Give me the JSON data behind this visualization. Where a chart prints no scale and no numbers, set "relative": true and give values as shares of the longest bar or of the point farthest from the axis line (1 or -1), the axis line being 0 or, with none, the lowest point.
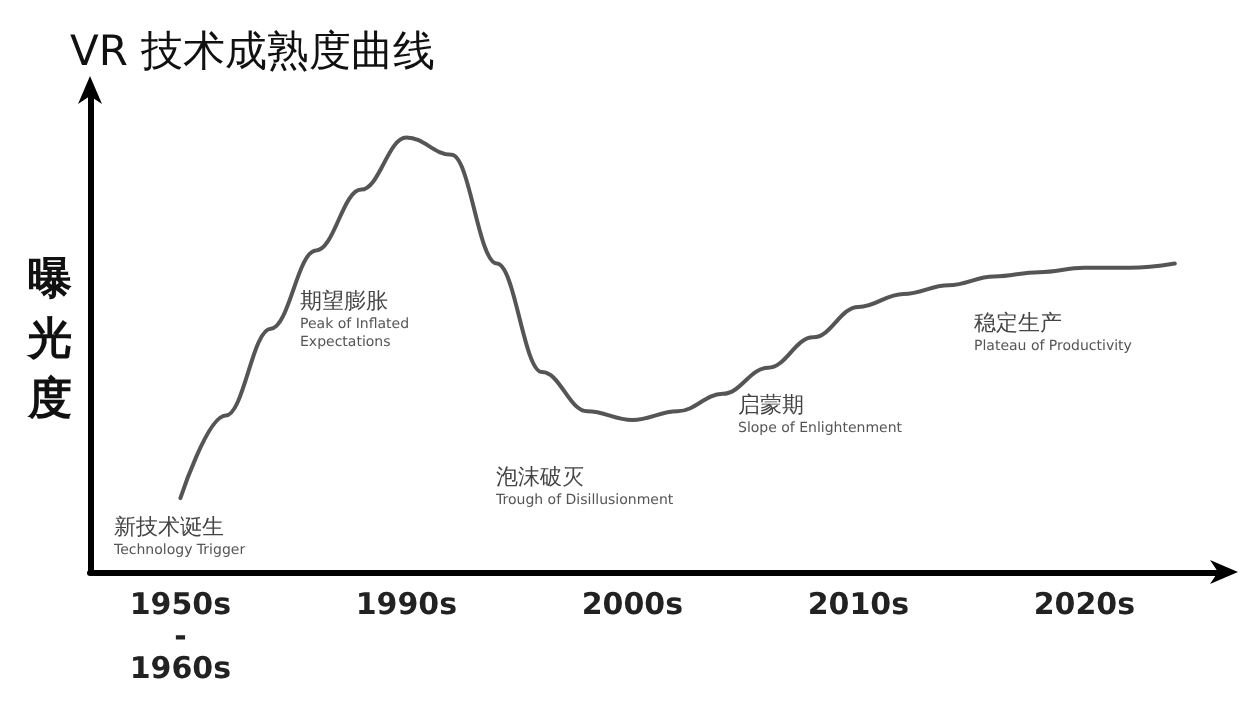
{
  "chart_data": {
    "type": "line",
    "title": "VR 技术成熟度曲线",
    "ylabel": "曝光度",
    "relative": true,
    "categories": [
      null,
      null,
      "1950s\n-\n1960s",
      null,
      null,
      null,
      null,
      "1990s",
      null,
      null,
      null,
      null,
      "2000s",
      null,
      null,
      null,
      null,
      "2010s",
      null,
      null,
      null,
      null,
      "2020s",
      null,
      null,
      null
    ],
    "series": [
      {
        "color": "#555555",
        "values": [
          null,
          null,
          0.17,
          0.36,
          0.56,
          0.74,
          0.88,
          1,
          0.96,
          0.71,
          0.46,
          0.37,
          0.35,
          0.37,
          0.41,
          0.47,
          0.54,
          0.61,
          0.64,
          0.66,
          0.68,
          0.69,
          0.7,
          0.7,
          0.71,
          null
        ]
      }
    ],
    "annotations": [
      "新技术诞生\nTechnology Trigger",
      "期望膨胀\nPeak of Inflated\nExpectations",
      "泡沫破灭\nTrough of Disillusionment",
      "启蒙期\nSlope of Enlightenment",
      "稳定生产\nPlateau of Productivity"
    ],
    "grid": false,
    "marker": "none",
    "line_style": "solid"
  }
}
